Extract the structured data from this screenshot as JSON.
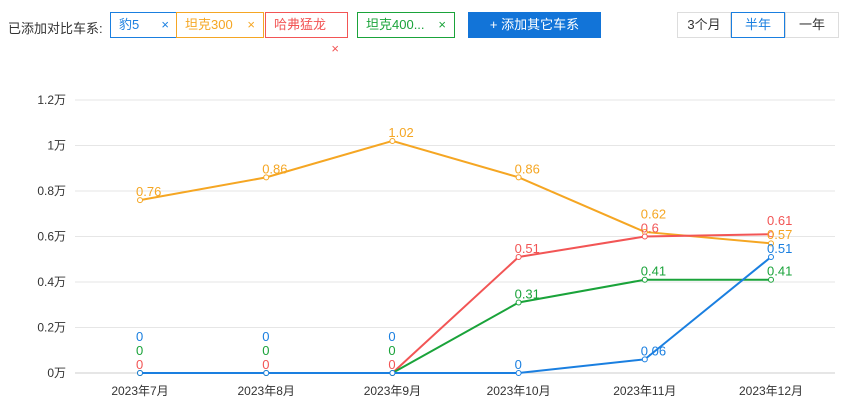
{
  "filter": {
    "label": "已添加对比车系:",
    "add_button": "+ 添加其它车系",
    "remove_icon": "×",
    "tags": [
      {
        "name": "豹5",
        "color": "#1a7fe0"
      },
      {
        "name": "坦克300",
        "color": "#f5a623"
      },
      {
        "name": "哈弗猛龙",
        "color": "#f25555"
      },
      {
        "name": "坦克400...",
        "color": "#1aa33a"
      }
    ]
  },
  "range": {
    "options": [
      "3个月",
      "半年",
      "一年"
    ],
    "selected": "半年"
  },
  "chart_data": {
    "type": "line",
    "categories": [
      "2023年7月",
      "2023年8月",
      "2023年9月",
      "2023年10月",
      "2023年11月",
      "2023年12月"
    ],
    "yticks": [
      "0万",
      "0.2万",
      "0.4万",
      "0.6万",
      "0.8万",
      "1万",
      "1.2万"
    ],
    "ylim": [
      0,
      1.2
    ],
    "grid": true,
    "series": [
      {
        "name": "坦克300",
        "color": "#f5a623",
        "values": [
          0.76,
          0.86,
          1.02,
          0.86,
          0.62,
          0.57
        ]
      },
      {
        "name": "哈弗猛龙",
        "color": "#f25555",
        "values": [
          0,
          0,
          0,
          0.51,
          0.6,
          0.61
        ]
      },
      {
        "name": "坦克400...",
        "color": "#1aa33a",
        "values": [
          0,
          0,
          0,
          0.31,
          0.41,
          0.41
        ]
      },
      {
        "name": "豹5",
        "color": "#1a7fe0",
        "values": [
          0,
          0,
          0,
          0,
          0.06,
          0.51
        ]
      }
    ]
  }
}
